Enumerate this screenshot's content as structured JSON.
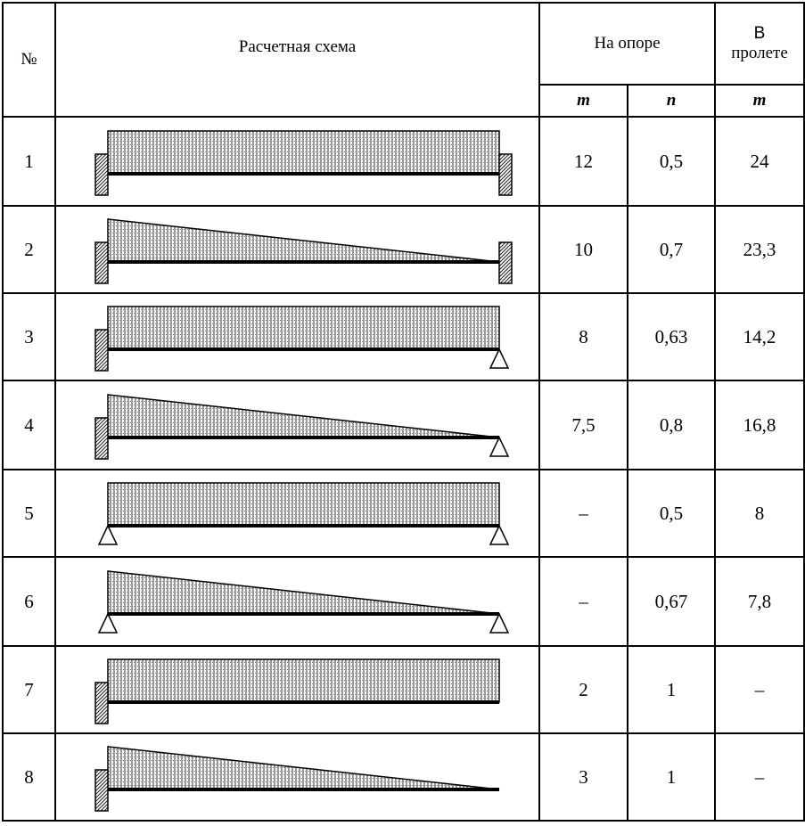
{
  "header": {
    "num_label": "№",
    "scheme_label": "Расчетная схема",
    "support_label": "На опоре",
    "span_label_line1": "В",
    "span_label_line2": "пролете",
    "sub_m1": "m",
    "sub_n": "n",
    "sub_m2": "m"
  },
  "rows": [
    {
      "num": "1",
      "m_support": "12",
      "n_support": "0,5",
      "m_span": "24",
      "load": "uniform",
      "left": "fixed",
      "right": "fixed"
    },
    {
      "num": "2",
      "m_support": "10",
      "n_support": "0,7",
      "m_span": "23,3",
      "load": "triangular",
      "left": "fixed",
      "right": "fixed"
    },
    {
      "num": "3",
      "m_support": "8",
      "n_support": "0,63",
      "m_span": "14,2",
      "load": "uniform",
      "left": "fixed",
      "right": "pin"
    },
    {
      "num": "4",
      "m_support": "7,5",
      "n_support": "0,8",
      "m_span": "16,8",
      "load": "triangular",
      "left": "fixed",
      "right": "pin"
    },
    {
      "num": "5",
      "m_support": "–",
      "n_support": "0,5",
      "m_span": "8",
      "load": "uniform",
      "left": "pin",
      "right": "pin"
    },
    {
      "num": "6",
      "m_support": "–",
      "n_support": "0,67",
      "m_span": "7,8",
      "load": "triangular",
      "left": "pin",
      "right": "pin"
    },
    {
      "num": "7",
      "m_support": "2",
      "n_support": "1",
      "m_span": "–",
      "load": "uniform",
      "left": "fixed",
      "right": "none"
    },
    {
      "num": "8",
      "m_support": "3",
      "n_support": "1",
      "m_span": "–",
      "load": "triangular",
      "left": "fixed",
      "right": "none"
    }
  ]
}
